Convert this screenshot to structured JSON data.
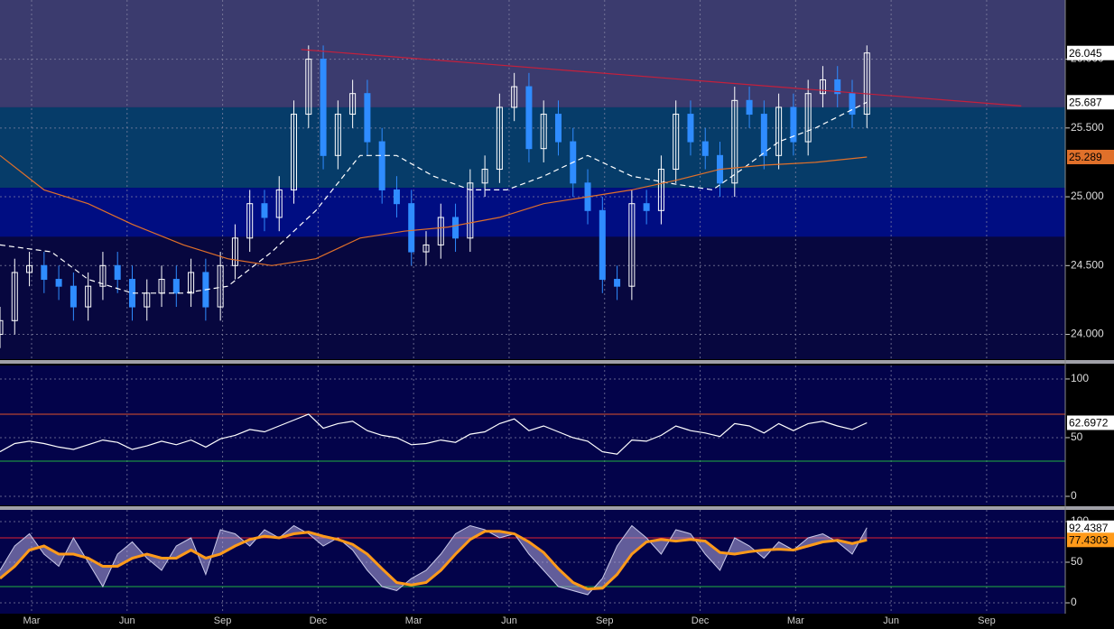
{
  "chart_data": [
    {
      "type": "candlestick",
      "xlim": [
        0,
        145
      ],
      "ylim": [
        23.82,
        26.43
      ],
      "yticks": [
        {
          "value": 24,
          "label": "24.000"
        },
        {
          "value": 24.5,
          "label": "24.500"
        },
        {
          "value": 25,
          "label": "25.000"
        },
        {
          "value": 25.5,
          "label": "25.500"
        },
        {
          "value": 26,
          "label": "26.000"
        }
      ],
      "background": "#07073f",
      "bands": [
        {
          "from": 25.65,
          "to": 26.43,
          "color": "#3b3b6e"
        },
        {
          "from": 25.065,
          "to": 25.65,
          "color": "#063c69"
        },
        {
          "from": 24.71,
          "to": 25.065,
          "color": "#000d82"
        }
      ],
      "up_color": "#ffffff",
      "down_color": "#2f8cff",
      "label_color": "#ffffff",
      "candles": {
        "x": [
          0,
          2,
          4,
          6,
          8,
          10,
          12,
          14,
          16,
          18,
          20,
          22,
          24,
          26,
          28,
          30,
          32,
          34,
          36,
          38,
          40,
          42,
          44,
          46,
          48,
          50,
          52,
          54,
          56,
          58,
          60,
          62,
          64,
          66,
          68,
          70,
          72,
          74,
          76,
          78,
          80,
          82,
          84,
          86,
          88,
          90,
          92,
          94,
          96,
          98,
          100,
          102,
          104,
          106,
          108,
          110,
          112,
          114,
          116,
          118
        ],
        "open": [
          24.0,
          24.1,
          24.45,
          24.5,
          24.4,
          24.35,
          24.2,
          24.35,
          24.5,
          24.4,
          24.2,
          24.3,
          24.4,
          24.3,
          24.45,
          24.2,
          24.5,
          24.7,
          24.95,
          24.85,
          25.05,
          25.6,
          26.0,
          25.3,
          25.6,
          25.75,
          25.4,
          25.05,
          24.95,
          24.6,
          24.65,
          24.85,
          24.7,
          25.1,
          25.2,
          25.65,
          25.8,
          25.35,
          25.6,
          25.4,
          25.1,
          24.9,
          24.4,
          24.35,
          24.95,
          24.9,
          25.2,
          25.6,
          25.4,
          25.3,
          25.1,
          25.7,
          25.6,
          25.3,
          25.65,
          25.4,
          25.75,
          25.85,
          25.75,
          25.6
        ],
        "high": [
          24.2,
          24.55,
          24.6,
          24.6,
          24.5,
          24.45,
          24.45,
          24.6,
          24.6,
          24.5,
          24.4,
          24.5,
          24.5,
          24.55,
          24.55,
          24.6,
          24.8,
          25.05,
          25.05,
          25.15,
          25.7,
          26.1,
          26.1,
          25.7,
          25.85,
          25.85,
          25.5,
          25.15,
          25.05,
          24.75,
          24.95,
          24.95,
          25.2,
          25.3,
          25.75,
          25.9,
          25.9,
          25.7,
          25.7,
          25.5,
          25.2,
          25.0,
          24.5,
          25.05,
          25.05,
          25.3,
          25.7,
          25.7,
          25.5,
          25.4,
          25.8,
          25.8,
          25.7,
          25.75,
          25.75,
          25.85,
          25.95,
          25.95,
          25.85,
          26.1
        ],
        "low": [
          23.9,
          24.0,
          24.35,
          24.3,
          24.25,
          24.1,
          24.1,
          24.25,
          24.3,
          24.1,
          24.1,
          24.2,
          24.2,
          24.2,
          24.1,
          24.1,
          24.4,
          24.6,
          24.75,
          24.75,
          24.95,
          25.5,
          25.2,
          25.2,
          25.5,
          25.3,
          24.95,
          24.85,
          24.5,
          24.5,
          24.55,
          24.6,
          24.6,
          25.0,
          25.1,
          25.55,
          25.25,
          25.25,
          25.3,
          25.0,
          24.8,
          24.3,
          24.25,
          24.25,
          24.8,
          24.8,
          25.1,
          25.3,
          25.2,
          25.0,
          25.0,
          25.5,
          25.2,
          25.2,
          25.3,
          25.3,
          25.65,
          25.65,
          25.5,
          25.5
        ],
        "close": [
          24.1,
          24.45,
          24.5,
          24.4,
          24.35,
          24.2,
          24.35,
          24.5,
          24.4,
          24.2,
          24.3,
          24.4,
          24.3,
          24.45,
          24.2,
          24.5,
          24.7,
          24.95,
          24.85,
          25.05,
          25.6,
          26.0,
          25.3,
          25.6,
          25.75,
          25.4,
          25.05,
          24.95,
          24.6,
          24.65,
          24.85,
          24.7,
          25.1,
          25.2,
          25.65,
          25.8,
          25.35,
          25.6,
          25.4,
          25.1,
          24.9,
          24.4,
          24.35,
          24.95,
          24.9,
          25.2,
          25.6,
          25.4,
          25.3,
          25.1,
          25.7,
          25.6,
          25.3,
          25.65,
          25.4,
          25.75,
          25.85,
          25.75,
          25.6,
          26.045
        ]
      },
      "series": [
        {
          "color": "#ffffff",
          "dash": true,
          "label_color": "#ffffff",
          "x": [
            0,
            7,
            12,
            18,
            25,
            31,
            37,
            43,
            49,
            54,
            59,
            64,
            69,
            74,
            80,
            86,
            91,
            97,
            101,
            106,
            111,
            118
          ],
          "values": [
            24.65,
            24.6,
            24.4,
            24.3,
            24.3,
            24.35,
            24.6,
            24.9,
            25.3,
            25.3,
            25.15,
            25.05,
            25.05,
            25.15,
            25.3,
            25.15,
            25.1,
            25.05,
            25.2,
            25.4,
            25.5,
            25.687
          ]
        },
        {
          "color": "#e0702a",
          "dash": false,
          "label_color": "#e0702a",
          "x": [
            0,
            6,
            12,
            18,
            25,
            31,
            37,
            43,
            49,
            55,
            61,
            68,
            74,
            80,
            86,
            92,
            98,
            104,
            111,
            118
          ],
          "values": [
            25.3,
            25.05,
            24.95,
            24.8,
            24.65,
            24.55,
            24.5,
            24.55,
            24.7,
            24.75,
            24.78,
            24.85,
            24.95,
            25.0,
            25.05,
            25.12,
            25.2,
            25.23,
            25.25,
            25.289
          ]
        },
        {
          "color": "#c4203c",
          "dash": false,
          "x": [
            41,
            139
          ],
          "values": [
            26.07,
            25.66
          ]
        }
      ]
    },
    {
      "type": "line",
      "xlim": [
        0,
        145
      ],
      "ylim": [
        -7.7,
        111.5
      ],
      "yticks": [
        0,
        50,
        100
      ],
      "background": "#03034a",
      "hlines": [
        {
          "value": 70,
          "color": "#e0502a"
        },
        {
          "value": 30,
          "color": "#20b040"
        }
      ],
      "series": [
        {
          "color": "#ffffff",
          "label_color": "#ffffff",
          "x": [
            0,
            2,
            4,
            6,
            8,
            10,
            12,
            14,
            16,
            18,
            20,
            22,
            24,
            26,
            28,
            30,
            32,
            34,
            36,
            38,
            40,
            42,
            44,
            46,
            48,
            50,
            52,
            54,
            56,
            58,
            60,
            62,
            64,
            66,
            68,
            70,
            72,
            74,
            76,
            78,
            80,
            82,
            84,
            86,
            88,
            90,
            92,
            94,
            96,
            98,
            100,
            102,
            104,
            106,
            108,
            110,
            112,
            114,
            116,
            118
          ],
          "values": [
            38,
            45,
            47,
            45,
            42,
            40,
            44,
            48,
            46,
            40,
            43,
            47,
            44,
            48,
            42,
            49,
            52,
            57,
            55,
            60,
            65,
            70,
            58,
            62,
            64,
            56,
            52,
            50,
            44,
            45,
            48,
            46,
            53,
            55,
            62,
            66,
            56,
            60,
            55,
            50,
            47,
            38,
            36,
            48,
            47,
            52,
            60,
            56,
            54,
            51,
            62,
            60,
            54,
            62,
            56,
            62,
            64,
            60,
            57,
            62.6972
          ]
        }
      ]
    },
    {
      "type": "stochastic",
      "xlim": [
        0,
        145
      ],
      "ylim": [
        -13.3,
        114.4
      ],
      "yticks": [
        0,
        50,
        100
      ],
      "background": "#03034a",
      "hlines": [
        {
          "value": 80,
          "color": "#e02030"
        },
        {
          "value": 20,
          "color": "#20b040"
        }
      ],
      "fill_color": "#b0a8dc",
      "xticks": [
        {
          "value": 4.3,
          "label": "Mar"
        },
        {
          "value": 17.3,
          "label": "Jun"
        },
        {
          "value": 30.3,
          "label": "Sep"
        },
        {
          "value": 43.3,
          "label": "Dec"
        },
        {
          "value": 56.3,
          "label": "Mar"
        },
        {
          "value": 69.3,
          "label": "Jun"
        },
        {
          "value": 82.3,
          "label": "Sep"
        },
        {
          "value": 95.3,
          "label": "Dec"
        },
        {
          "value": 108.3,
          "label": "Mar"
        },
        {
          "value": 121.3,
          "label": "Jun"
        },
        {
          "value": 134.3,
          "label": "Sep"
        }
      ],
      "series": [
        {
          "color": "#c8c8e8",
          "width": 1,
          "label_color": "#ffffff",
          "x": [
            0,
            2,
            4,
            6,
            8,
            10,
            12,
            14,
            16,
            18,
            20,
            22,
            24,
            26,
            28,
            30,
            32,
            34,
            36,
            38,
            40,
            42,
            44,
            46,
            48,
            50,
            52,
            54,
            56,
            58,
            60,
            62,
            64,
            66,
            68,
            70,
            72,
            74,
            76,
            78,
            80,
            82,
            84,
            86,
            88,
            90,
            92,
            94,
            96,
            98,
            100,
            102,
            104,
            106,
            108,
            110,
            112,
            114,
            116,
            118
          ],
          "values": [
            40,
            70,
            85,
            60,
            45,
            80,
            50,
            20,
            60,
            75,
            55,
            40,
            70,
            80,
            35,
            90,
            85,
            70,
            90,
            80,
            95,
            85,
            70,
            80,
            65,
            40,
            20,
            15,
            30,
            40,
            60,
            85,
            95,
            90,
            80,
            85,
            60,
            40,
            20,
            15,
            10,
            30,
            70,
            95,
            80,
            60,
            90,
            85,
            60,
            40,
            80,
            70,
            55,
            75,
            65,
            80,
            85,
            75,
            60,
            92.4387
          ]
        },
        {
          "color": "#ff9a1a",
          "width": 3,
          "label_color": "#ff9a1a",
          "x": [
            0,
            2,
            4,
            6,
            8,
            10,
            12,
            14,
            16,
            18,
            20,
            22,
            24,
            26,
            28,
            30,
            32,
            34,
            36,
            38,
            40,
            42,
            44,
            46,
            48,
            50,
            52,
            54,
            56,
            58,
            60,
            62,
            64,
            66,
            68,
            70,
            72,
            74,
            76,
            78,
            80,
            82,
            84,
            86,
            88,
            90,
            92,
            94,
            96,
            98,
            100,
            102,
            104,
            106,
            108,
            110,
            112,
            114,
            116,
            118
          ],
          "values": [
            30,
            45,
            65,
            70,
            60,
            60,
            55,
            45,
            45,
            55,
            60,
            55,
            55,
            65,
            55,
            60,
            70,
            78,
            82,
            80,
            85,
            87,
            82,
            78,
            72,
            60,
            42,
            25,
            22,
            25,
            40,
            60,
            78,
            88,
            88,
            85,
            75,
            62,
            42,
            25,
            17,
            18,
            35,
            60,
            75,
            78,
            76,
            78,
            76,
            62,
            60,
            63,
            65,
            66,
            65,
            70,
            75,
            77,
            73,
            77.4303
          ]
        }
      ]
    }
  ]
}
